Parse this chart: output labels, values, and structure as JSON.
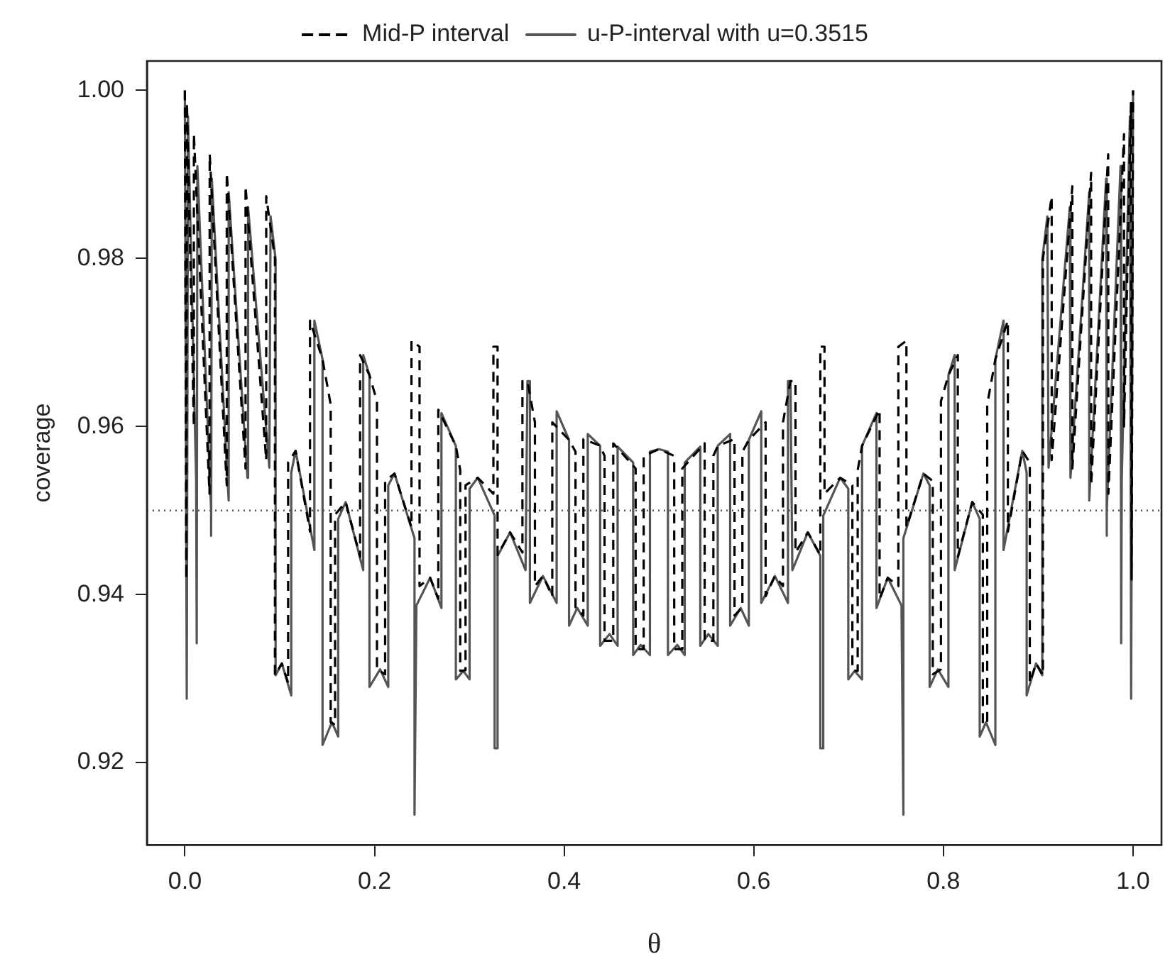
{
  "chart_data": {
    "type": "line",
    "xlabel": "θ",
    "ylabel": "coverage",
    "xlim": [
      -0.04,
      1.03
    ],
    "ylim": [
      0.9102,
      1.0035
    ],
    "xticks": [
      {
        "value": 0,
        "label": "0.0"
      },
      0.2,
      0.4,
      0.6,
      0.8,
      {
        "value": 1,
        "label": "1.0"
      }
    ],
    "yticks": [
      0.92,
      0.94,
      0.96,
      0.98,
      {
        "value": 1,
        "label": "1.00"
      }
    ],
    "grid": false,
    "legend": "top",
    "marker": "none",
    "ref_lines": [
      {
        "axis": "y",
        "value": 0.95,
        "color": "#555555",
        "line_style": "dotted"
      }
    ],
    "series": [
      {
        "name": "Mid-P interval",
        "color": "#000000",
        "line_style": "dashed",
        "x": [
          0,
          0.0015,
          0.0022,
          0.0095,
          0.0095,
          0.026,
          0.0262,
          0.0442,
          0.0442,
          0.064,
          0.064,
          0.0858,
          0.0858,
          0.095,
          0.095,
          0.1023,
          0.1089,
          0.1089,
          0.1168,
          0.132,
          0.132,
          0.1452,
          0.1538,
          0.1538,
          0.1584,
          0.1584,
          0.1696,
          0.1848,
          0.1848,
          0.1947,
          0.2026,
          0.2026,
          0.2112,
          0.2112,
          0.2211,
          0.239,
          0.239,
          0.2475,
          0.2475,
          0.2587,
          0.2673,
          0.2673,
          0.2858,
          0.2904,
          0.2904,
          0.296,
          0.296,
          0.3089,
          0.3254,
          0.3254,
          0.3298,
          0.3298,
          0.343,
          0.356,
          0.356,
          0.3613,
          0.3692,
          0.3692,
          0.3777,
          0.3875,
          0.3875,
          0.4052,
          0.412,
          0.412,
          0.4203,
          0.4203,
          0.438,
          0.4426,
          0.4426,
          0.4518,
          0.4518,
          0.4754,
          0.4754,
          0.4839,
          0.4839,
          0.5,
          0.5161,
          0.5161,
          0.5246,
          0.5246,
          0.5482,
          0.5482,
          0.5574,
          0.5574,
          0.562,
          0.5797,
          0.5797,
          0.588,
          0.588,
          0.5948,
          0.6125,
          0.6125,
          0.6223,
          0.6308,
          0.6308,
          0.6387,
          0.644,
          0.644,
          0.657,
          0.6702,
          0.6702,
          0.6746,
          0.6746,
          0.6911,
          0.704,
          0.704,
          0.7096,
          0.7096,
          0.7142,
          0.7327,
          0.7327,
          0.7413,
          0.7525,
          0.7525,
          0.761,
          0.761,
          0.7789,
          0.7888,
          0.7888,
          0.7974,
          0.7974,
          0.8053,
          0.8152,
          0.8152,
          0.8304,
          0.8416,
          0.8416,
          0.8462,
          0.8462,
          0.8548,
          0.868,
          0.868,
          0.8832,
          0.8911,
          0.8911,
          0.8977,
          0.905,
          0.905,
          0.9142,
          0.9142,
          0.936,
          0.936,
          0.9558,
          0.9558,
          0.9738,
          0.974,
          0.9905,
          0.9905,
          0.9978,
          0.9985,
          1
        ],
        "values": [
          1.0,
          0.9418,
          0.9985,
          0.96,
          0.9948,
          0.952,
          0.9924,
          0.953,
          0.9902,
          0.955,
          0.9886,
          0.956,
          0.9874,
          0.98,
          0.9304,
          0.9318,
          0.9295,
          0.9557,
          0.9571,
          0.9475,
          0.9726,
          0.968,
          0.9626,
          0.9248,
          0.9245,
          0.9495,
          0.951,
          0.9445,
          0.9685,
          0.9661,
          0.963,
          0.9311,
          0.9305,
          0.9535,
          0.9544,
          0.948,
          0.9702,
          0.9695,
          0.941,
          0.942,
          0.9395,
          0.962,
          0.9577,
          0.9548,
          0.9309,
          0.931,
          0.953,
          0.9539,
          0.952,
          0.9695,
          0.9695,
          0.9447,
          0.9474,
          0.945,
          0.9654,
          0.9654,
          0.9605,
          0.941,
          0.9422,
          0.9398,
          0.9605,
          0.9584,
          0.957,
          0.9385,
          0.9375,
          0.9585,
          0.9577,
          0.9565,
          0.9345,
          0.9345,
          0.958,
          0.955,
          0.9335,
          0.9335,
          0.9565,
          0.9573,
          0.9565,
          0.9335,
          0.9335,
          0.955,
          0.958,
          0.9345,
          0.9345,
          0.9565,
          0.9577,
          0.9585,
          0.9375,
          0.9385,
          0.957,
          0.9584,
          0.9605,
          0.9398,
          0.9422,
          0.941,
          0.9605,
          0.9654,
          0.9654,
          0.945,
          0.9474,
          0.9447,
          0.9695,
          0.9695,
          0.952,
          0.9539,
          0.953,
          0.931,
          0.9309,
          0.9548,
          0.9577,
          0.962,
          0.9395,
          0.942,
          0.941,
          0.9695,
          0.9702,
          0.948,
          0.9544,
          0.9535,
          0.9305,
          0.9311,
          0.963,
          0.9661,
          0.9685,
          0.9445,
          0.951,
          0.9495,
          0.9245,
          0.9248,
          0.9626,
          0.968,
          0.9726,
          0.9475,
          0.9571,
          0.9557,
          0.9295,
          0.9318,
          0.9304,
          0.98,
          0.9874,
          0.956,
          0.9886,
          0.955,
          0.9902,
          0.953,
          0.9924,
          0.952,
          0.9948,
          0.96,
          0.9985,
          0.9418,
          1.0
        ]
      },
      {
        "name": "u-P-interval with u=0.3515",
        "color": "#555555",
        "line_style": "solid",
        "x": [
          0,
          0.002,
          0.0033,
          0.0119,
          0.0125,
          0.0132,
          0.0277,
          0.0277,
          0.0284,
          0.0462,
          0.0462,
          0.066,
          0.0667,
          0.0891,
          0.0904,
          0.0957,
          0.0957,
          0.1023,
          0.1122,
          0.1122,
          0.1168,
          0.1366,
          0.1366,
          0.1452,
          0.1452,
          0.1551,
          0.1617,
          0.1617,
          0.1696,
          0.1881,
          0.1881,
          0.1947,
          0.1947,
          0.2059,
          0.2145,
          0.2145,
          0.2211,
          0.2422,
          0.2422,
          0.2442,
          0.2587,
          0.2706,
          0.2706,
          0.2858,
          0.2858,
          0.2937,
          0.3003,
          0.3003,
          0.3089,
          0.3267,
          0.3267,
          0.3298,
          0.3298,
          0.343,
          0.3593,
          0.3613,
          0.3639,
          0.3639,
          0.3777,
          0.3921,
          0.3921,
          0.4052,
          0.4052,
          0.4138,
          0.4249,
          0.4249,
          0.438,
          0.438,
          0.4479,
          0.4564,
          0.4564,
          0.4728,
          0.4728,
          0.4807,
          0.4905,
          0.4905,
          0.5,
          0.5095,
          0.5095,
          0.5193,
          0.5272,
          0.5272,
          0.5436,
          0.5436,
          0.5521,
          0.562,
          0.562,
          0.5751,
          0.5751,
          0.5862,
          0.5948,
          0.5948,
          0.6079,
          0.6079,
          0.6223,
          0.6361,
          0.6361,
          0.6387,
          0.6407,
          0.657,
          0.6702,
          0.6702,
          0.6733,
          0.6733,
          0.6911,
          0.6997,
          0.6997,
          0.7063,
          0.7142,
          0.7142,
          0.7294,
          0.7294,
          0.7413,
          0.7558,
          0.7578,
          0.7578,
          0.7789,
          0.7855,
          0.7855,
          0.7941,
          0.8053,
          0.8053,
          0.8119,
          0.8119,
          0.8304,
          0.8383,
          0.8383,
          0.8449,
          0.8548,
          0.8548,
          0.8634,
          0.8634,
          0.8832,
          0.8878,
          0.8878,
          0.8977,
          0.9043,
          0.9043,
          0.9096,
          0.9109,
          0.9333,
          0.934,
          0.9538,
          0.9538,
          0.9716,
          0.9723,
          0.9723,
          0.9868,
          0.9875,
          0.9881,
          0.9967,
          0.998,
          1
        ],
        "values": [
          1.0,
          0.9276,
          0.9969,
          0.9536,
          0.9342,
          0.991,
          0.95,
          0.947,
          0.9895,
          0.9512,
          0.9879,
          0.9539,
          0.9861,
          0.9551,
          0.985,
          0.9799,
          0.9304,
          0.9318,
          0.928,
          0.9545,
          0.9571,
          0.9453,
          0.9726,
          0.968,
          0.9221,
          0.9248,
          0.9231,
          0.949,
          0.951,
          0.9429,
          0.9685,
          0.9661,
          0.929,
          0.9311,
          0.929,
          0.953,
          0.9544,
          0.9467,
          0.9138,
          0.9387,
          0.942,
          0.9384,
          0.9616,
          0.9577,
          0.9299,
          0.9309,
          0.9299,
          0.9526,
          0.9539,
          0.9494,
          0.9217,
          0.9217,
          0.9446,
          0.9474,
          0.9429,
          0.9654,
          0.9654,
          0.939,
          0.9422,
          0.939,
          0.9618,
          0.9584,
          0.9363,
          0.9384,
          0.9363,
          0.9591,
          0.9577,
          0.9339,
          0.9353,
          0.9339,
          0.9576,
          0.9557,
          0.9328,
          0.934,
          0.9328,
          0.957,
          0.9573,
          0.957,
          0.9328,
          0.934,
          0.9328,
          0.9557,
          0.9576,
          0.9339,
          0.9353,
          0.9339,
          0.9577,
          0.9591,
          0.9363,
          0.9384,
          0.9363,
          0.9584,
          0.9618,
          0.939,
          0.9422,
          0.939,
          0.9654,
          0.9654,
          0.9429,
          0.9474,
          0.9446,
          0.9217,
          0.9217,
          0.9494,
          0.9539,
          0.9526,
          0.9299,
          0.9309,
          0.9299,
          0.9577,
          0.9616,
          0.9384,
          0.942,
          0.9387,
          0.9138,
          0.9467,
          0.9544,
          0.953,
          0.929,
          0.9311,
          0.929,
          0.9661,
          0.9685,
          0.9429,
          0.951,
          0.949,
          0.9231,
          0.9248,
          0.9221,
          0.968,
          0.9726,
          0.9453,
          0.9571,
          0.9545,
          0.928,
          0.9318,
          0.9304,
          0.9799,
          0.985,
          0.9551,
          0.9861,
          0.9539,
          0.9879,
          0.9512,
          0.9895,
          0.947,
          0.95,
          0.991,
          0.9342,
          0.9536,
          0.9969,
          0.9276,
          1.0
        ]
      }
    ]
  }
}
